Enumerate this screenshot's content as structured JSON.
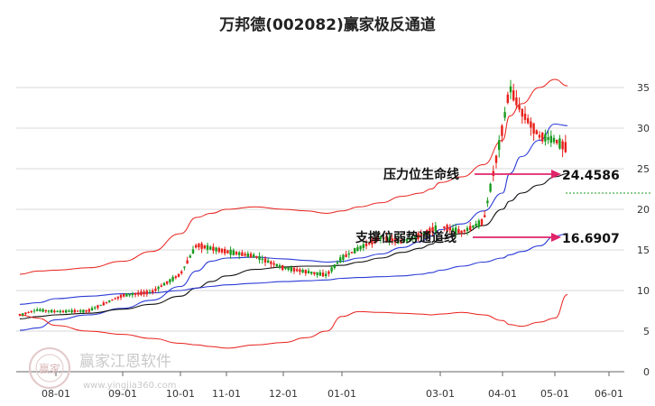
{
  "chart_data": {
    "type": "line",
    "title": "万邦德(002082)赢家极反通道",
    "x_tick_labels": [
      "08-01",
      "09-01",
      "10-01",
      "11-01",
      "12-01",
      "01-01",
      "03-01",
      "04-01",
      "05-01",
      "06-01"
    ],
    "y_ticks": [
      0,
      5,
      10,
      15,
      20,
      25,
      30,
      35
    ],
    "ylim": [
      0,
      37
    ],
    "grid": true,
    "colors": {
      "up": "#e8201b",
      "down": "#199b1e",
      "upper": "#e8201b",
      "mid": "#2b3bd6",
      "ma": "#111111",
      "arrow": "#e0246a",
      "dashed": "#199b1e"
    },
    "x": [
      "07-10",
      "07-20",
      "08-01",
      "08-15",
      "09-01",
      "09-15",
      "10-01",
      "10-10",
      "10-20",
      "11-01",
      "11-15",
      "12-01",
      "12-15",
      "12-25",
      "01-01",
      "01-10",
      "01-20",
      "02-01",
      "02-10",
      "02-20",
      "03-01",
      "03-10",
      "03-20",
      "04-01",
      "04-05",
      "04-10",
      "04-20",
      "05-01",
      "05-05"
    ],
    "series": [
      {
        "key": "close",
        "values": [
          7.0,
          7.6,
          7.4,
          7.5,
          9.4,
          9.8,
          12.0,
          15.6,
          15.2,
          14.8,
          14.2,
          12.8,
          12.3,
          11.9,
          14.0,
          15.2,
          16.5,
          16.0,
          16.8,
          17.4,
          17.9,
          17.2,
          18.5,
          30.0,
          35.0,
          32.0,
          29.0,
          28.5,
          27.5
        ]
      },
      {
        "key": "upper",
        "values": [
          12.0,
          12.4,
          12.5,
          12.8,
          13.6,
          14.8,
          17.0,
          19.0,
          19.5,
          20.0,
          20.3,
          20.0,
          19.8,
          19.5,
          19.8,
          20.3,
          20.8,
          21.6,
          22.0,
          22.5,
          23.3,
          24.0,
          25.5,
          28.5,
          31.5,
          33.0,
          35.0,
          36.0,
          35.2
        ]
      },
      {
        "key": "mid",
        "values": [
          5.1,
          5.4,
          6.4,
          7.0,
          7.8,
          8.8,
          10.5,
          12.4,
          13.6,
          14.0,
          14.1,
          13.9,
          13.7,
          13.5,
          13.6,
          14.0,
          14.5,
          15.3,
          16.0,
          16.7,
          17.5,
          18.2,
          19.8,
          22.0,
          24.4,
          26.5,
          28.5,
          30.5,
          30.3
        ]
      },
      {
        "key": "ma",
        "values": [
          6.5,
          6.8,
          7.0,
          7.2,
          7.7,
          8.3,
          9.3,
          10.3,
          11.1,
          11.8,
          12.6,
          12.9,
          13.0,
          13.0,
          13.1,
          13.5,
          14.0,
          14.7,
          15.2,
          15.7,
          16.4,
          17.0,
          18.0,
          20.0,
          21.0,
          22.0,
          23.0,
          24.0,
          24.4
        ]
      },
      {
        "key": "lower",
        "values": [
          8.3,
          8.5,
          9.0,
          9.3,
          9.6,
          9.7,
          10.0,
          10.3,
          10.5,
          10.7,
          10.9,
          11.1,
          11.2,
          11.3,
          11.5,
          11.6,
          11.7,
          11.8,
          12.0,
          12.2,
          12.5,
          13.0,
          13.5,
          14.0,
          14.4,
          14.8,
          15.5,
          16.7,
          17.0
        ]
      },
      {
        "key": "bottom",
        "values": [
          7.0,
          6.6,
          5.7,
          5.0,
          4.6,
          4.1,
          3.5,
          3.3,
          3.1,
          2.9,
          3.3,
          3.6,
          4.2,
          5.0,
          6.8,
          7.4,
          7.3,
          7.2,
          7.1,
          7.0,
          7.1,
          7.3,
          7.0,
          6.3,
          5.8,
          5.6,
          6.1,
          6.6,
          9.5
        ]
      }
    ],
    "annotations": [
      {
        "label": "压力位生命线",
        "value": "24.4586"
      },
      {
        "label": "支撑位弱势通道线",
        "value": "16.6907"
      }
    ]
  },
  "watermark": {
    "logo_text": "赢家",
    "name": "赢家江恩软件",
    "url": "www.yingjia360.com"
  }
}
